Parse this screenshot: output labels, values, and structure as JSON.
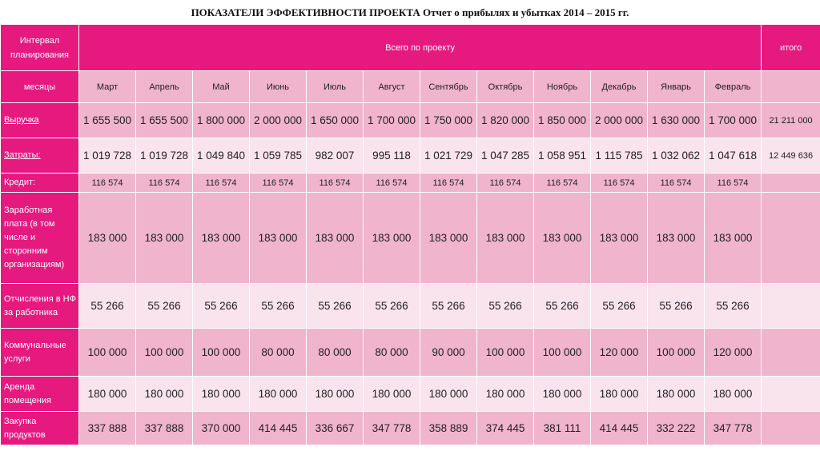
{
  "title": "ПОКАЗАТЕЛИ ЭФФЕКТИВНОСТИ ПРОЕКТА  Отчет о прибылях и убытках 2014 – 2015 гг.",
  "header": {
    "planning_label": "Интервал планирования",
    "project_label": "Всего по проекту",
    "total_label": "итого"
  },
  "months_label": "месяцы",
  "months": [
    "Март",
    "Апрель",
    "Май",
    "Июнь",
    "Июль",
    "Август",
    "Сентябрь",
    "Октябрь",
    "Ноябрь",
    "Декабрь",
    "Январь",
    "Февраль"
  ],
  "rows": [
    {
      "label": "Выручка",
      "values": [
        "1 655 500",
        "1 655 500",
        "1 800 000",
        "2 000 000",
        "1 650 000",
        "1 700 000",
        "1 750 000",
        "1 820 000",
        "1 850 000",
        "2 000 000",
        "1 630 000",
        "1 700 000"
      ],
      "total": "21 211 000"
    },
    {
      "label": "Затраты:",
      "values": [
        "1 019 728",
        "1 019 728",
        "1 049 840",
        "1 059 785",
        "982 007",
        "995 118",
        "1 021 729",
        "1 047 285",
        "1 058 951",
        "1 115 785",
        "1 032 062",
        "1 047 618"
      ],
      "total": "12 449 636"
    },
    {
      "label": "Кредит:",
      "values": [
        "116 574",
        "116 574",
        "116 574",
        "116 574",
        "116 574",
        "116 574",
        "116 574",
        "116 574",
        "116 574",
        "116 574",
        "116 574",
        "116 574"
      ],
      "total": ""
    },
    {
      "label": "Заработная плата (в том числе и сторонним организациям)",
      "values": [
        "183 000",
        "183 000",
        "183 000",
        "183 000",
        "183 000",
        "183 000",
        "183 000",
        "183 000",
        "183 000",
        "183 000",
        "183 000",
        "183 000"
      ],
      "total": ""
    },
    {
      "label": "Отчисления в НФ за работника",
      "values": [
        "55 266",
        "55 266",
        "55 266",
        "55 266",
        "55 266",
        "55 266",
        "55 266",
        "55 266",
        "55 266",
        "55 266",
        "55 266",
        "55 266"
      ],
      "total": ""
    },
    {
      "label": "Коммунальные услуги",
      "values": [
        "100 000",
        "100 000",
        "100 000",
        "80 000",
        "80 000",
        "80 000",
        "90 000",
        "100 000",
        "100 000",
        "120 000",
        "100 000",
        "120 000"
      ],
      "total": ""
    },
    {
      "label": "Аренда помещения",
      "values": [
        "180 000",
        "180 000",
        "180 000",
        "180 000",
        "180 000",
        "180 000",
        "180 000",
        "180 000",
        "180 000",
        "180 000",
        "180 000",
        "180 000"
      ],
      "total": ""
    },
    {
      "label": "Закупка продуктов",
      "values": [
        "337 888",
        "337 888",
        "370 000",
        "414 445",
        "336 667",
        "347 778",
        "358 889",
        "374 445",
        "381 111",
        "414 445",
        "332 222",
        "347 778"
      ],
      "total": ""
    }
  ]
}
